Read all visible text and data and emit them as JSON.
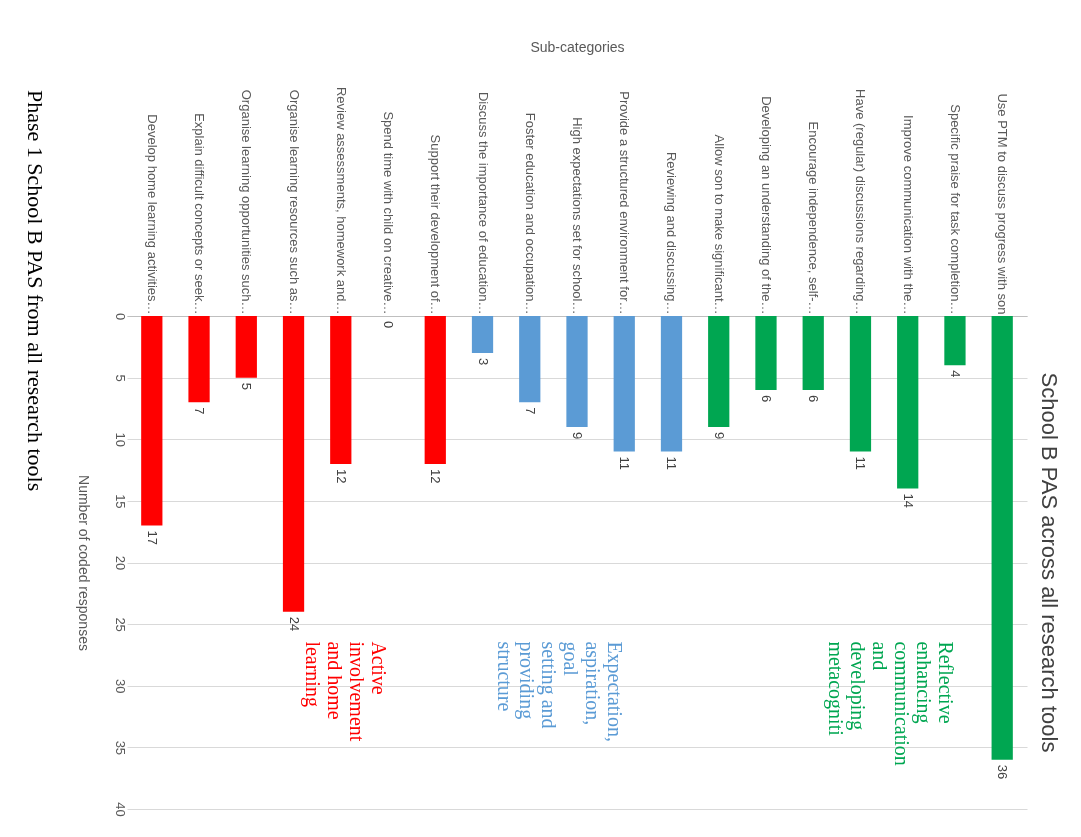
{
  "chart_data": {
    "type": "bar",
    "title": "School B PAS across all research tools",
    "xlabel": "Sub-categories",
    "ylabel": "Number of coded responses",
    "categories": [
      "Develop home learning activities…",
      "Explain difficult concepts or seek…",
      "Organise learning opportunities such…",
      "Organise learning resources such as…",
      "Review assessments, homework and…",
      "Spend time with child on creative…",
      "Support their development of…",
      "Discuss the importance of education…",
      "Foster education and occupation…",
      "High expectations set for school…",
      "Provide a structured environment for…",
      "Reviewing and discussing…",
      "Allow son to make significant…",
      "Developing an understanding of the…",
      "Encourage independence, self-…",
      "Have (regular) discussions regarding…",
      "Improve communication with the…",
      "Specific praise for task completion…",
      "Use PTM to discuss progress with son"
    ],
    "series": [
      {
        "name": "Active involvement and home learning",
        "color": "#ff0000",
        "values": [
          17,
          7,
          5,
          24,
          12,
          0,
          12,
          null,
          null,
          null,
          null,
          null,
          null,
          null,
          null,
          null,
          null,
          null,
          null
        ]
      },
      {
        "name": "Expectation, aspiration, goal setting and providing structure",
        "color": "#5b9bd5",
        "values": [
          null,
          null,
          null,
          null,
          null,
          null,
          null,
          3,
          7,
          9,
          11,
          11,
          null,
          null,
          null,
          null,
          null,
          null,
          null
        ]
      },
      {
        "name": "Reflective enhancing communication and developing metacogniti",
        "color": "#00a651",
        "values": [
          null,
          null,
          null,
          null,
          null,
          null,
          null,
          null,
          null,
          null,
          null,
          null,
          9,
          6,
          6,
          11,
          14,
          4,
          36
        ]
      }
    ],
    "ylim": [
      40,
      0
    ],
    "yticks": [
      0,
      5,
      10,
      15,
      20,
      25,
      30,
      35,
      40
    ],
    "grid": "y",
    "data_labels": true,
    "annotations": [
      "Phase 1  School B PAS from all research tools"
    ]
  }
}
